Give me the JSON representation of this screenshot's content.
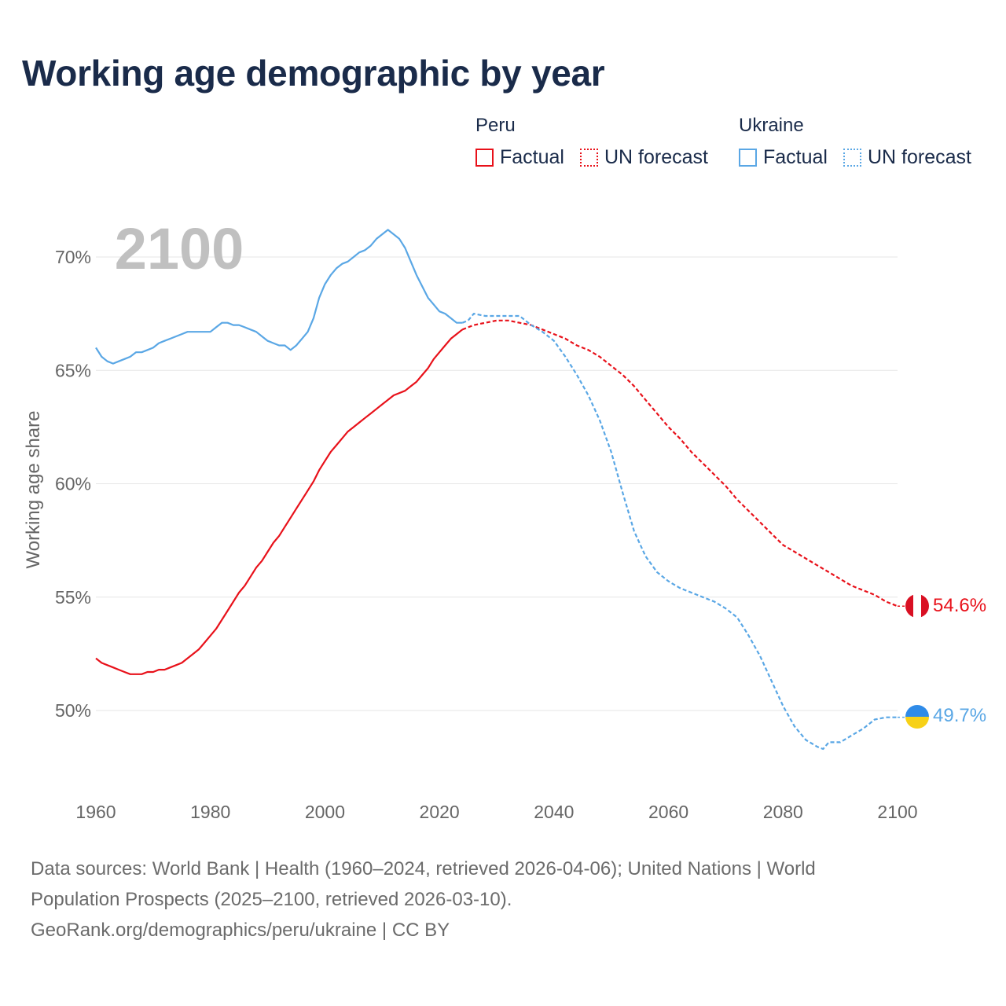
{
  "title": "Working age demographic by year",
  "legend": {
    "groups": [
      {
        "country": "Peru",
        "factual_label": "Factual",
        "forecast_label": "UN forecast",
        "color": "#e8111a"
      },
      {
        "country": "Ukraine",
        "factual_label": "Factual",
        "forecast_label": "UN forecast",
        "color": "#5aa7e5"
      }
    ]
  },
  "year_watermark": "2100",
  "end_labels": {
    "peru": "54.6%",
    "ukraine": "49.7%"
  },
  "footer": {
    "lines": [
      "Data sources: World Bank | Health (1960–2024, retrieved 2026-04-06); United Nations | World",
      "Population Prospects (2025–2100, retrieved 2026-03-10).",
      "GeoRank.org/demographics/peru/ukraine | CC BY"
    ]
  },
  "colors": {
    "peru": "#e8111a",
    "ukraine": "#5aa7e5",
    "text": "#1a2b4a",
    "grid": "#e6e6e6",
    "axis_text": "#666666",
    "watermark": "#c0c0c0"
  },
  "chart_data": {
    "type": "line",
    "title": "Working age demographic by year",
    "xlabel": "",
    "ylabel": "Working age share",
    "xlim": [
      1960,
      2100
    ],
    "ylim": [
      46.5,
      73
    ],
    "xticks": [
      1960,
      1980,
      2000,
      2020,
      2040,
      2060,
      2080,
      2100
    ],
    "xtick_labels": [
      "1960",
      "1980",
      "2000",
      "2020",
      "2040",
      "2060",
      "2080",
      "2100"
    ],
    "yticks": [
      50,
      55,
      60,
      65,
      70
    ],
    "ytick_labels": [
      "50%",
      "55%",
      "60%",
      "65%",
      "70%"
    ],
    "series": [
      {
        "name": "Peru",
        "segment": "Factual",
        "dash": "solid",
        "color": "#e8111a",
        "x": [
          1960,
          1961,
          1962,
          1963,
          1964,
          1965,
          1966,
          1967,
          1968,
          1969,
          1970,
          1971,
          1972,
          1973,
          1974,
          1975,
          1976,
          1977,
          1978,
          1979,
          1980,
          1981,
          1982,
          1983,
          1984,
          1985,
          1986,
          1987,
          1988,
          1989,
          1990,
          1991,
          1992,
          1993,
          1994,
          1995,
          1996,
          1997,
          1998,
          1999,
          2000,
          2001,
          2002,
          2003,
          2004,
          2005,
          2006,
          2007,
          2008,
          2009,
          2010,
          2011,
          2012,
          2013,
          2014,
          2015,
          2016,
          2017,
          2018,
          2019,
          2020,
          2021,
          2022,
          2023,
          2024
        ],
        "y": [
          52.3,
          52.1,
          52.0,
          51.9,
          51.8,
          51.7,
          51.6,
          51.6,
          51.6,
          51.7,
          51.7,
          51.8,
          51.8,
          51.9,
          52.0,
          52.1,
          52.3,
          52.5,
          52.7,
          53.0,
          53.3,
          53.6,
          54.0,
          54.4,
          54.8,
          55.2,
          55.5,
          55.9,
          56.3,
          56.6,
          57.0,
          57.4,
          57.7,
          58.1,
          58.5,
          58.9,
          59.3,
          59.7,
          60.1,
          60.6,
          61.0,
          61.4,
          61.7,
          62.0,
          62.3,
          62.5,
          62.7,
          62.9,
          63.1,
          63.3,
          63.5,
          63.7,
          63.9,
          64.0,
          64.1,
          64.3,
          64.5,
          64.8,
          65.1,
          65.5,
          65.8,
          66.1,
          66.4,
          66.6,
          66.8
        ]
      },
      {
        "name": "Peru",
        "segment": "UN forecast",
        "dash": "dotted",
        "color": "#e8111a",
        "x": [
          2024,
          2026,
          2028,
          2030,
          2032,
          2034,
          2036,
          2038,
          2040,
          2042,
          2044,
          2046,
          2048,
          2050,
          2052,
          2054,
          2056,
          2058,
          2060,
          2062,
          2064,
          2066,
          2068,
          2070,
          2072,
          2074,
          2076,
          2078,
          2080,
          2082,
          2084,
          2086,
          2088,
          2090,
          2092,
          2094,
          2096,
          2098,
          2100
        ],
        "y": [
          66.8,
          67.0,
          67.1,
          67.2,
          67.2,
          67.1,
          67.0,
          66.8,
          66.6,
          66.4,
          66.1,
          65.9,
          65.6,
          65.2,
          64.8,
          64.3,
          63.7,
          63.1,
          62.5,
          62.0,
          61.4,
          60.9,
          60.4,
          59.9,
          59.3,
          58.8,
          58.3,
          57.8,
          57.3,
          57.0,
          56.7,
          56.4,
          56.1,
          55.8,
          55.5,
          55.3,
          55.1,
          54.8,
          54.6
        ]
      },
      {
        "name": "Ukraine",
        "segment": "Factual",
        "dash": "solid",
        "color": "#5aa7e5",
        "x": [
          1960,
          1961,
          1962,
          1963,
          1964,
          1965,
          1966,
          1967,
          1968,
          1969,
          1970,
          1971,
          1972,
          1973,
          1974,
          1975,
          1976,
          1977,
          1978,
          1979,
          1980,
          1981,
          1982,
          1983,
          1984,
          1985,
          1986,
          1987,
          1988,
          1989,
          1990,
          1991,
          1992,
          1993,
          1994,
          1995,
          1996,
          1997,
          1998,
          1999,
          2000,
          2001,
          2002,
          2003,
          2004,
          2005,
          2006,
          2007,
          2008,
          2009,
          2010,
          2011,
          2012,
          2013,
          2014,
          2015,
          2016,
          2017,
          2018,
          2019,
          2020,
          2021,
          2022,
          2023,
          2024
        ],
        "y": [
          66.0,
          65.6,
          65.4,
          65.3,
          65.4,
          65.5,
          65.6,
          65.8,
          65.8,
          65.9,
          66.0,
          66.2,
          66.3,
          66.4,
          66.5,
          66.6,
          66.7,
          66.7,
          66.7,
          66.7,
          66.7,
          66.9,
          67.1,
          67.1,
          67.0,
          67.0,
          66.9,
          66.8,
          66.7,
          66.5,
          66.3,
          66.2,
          66.1,
          66.1,
          65.9,
          66.1,
          66.4,
          66.7,
          67.3,
          68.2,
          68.8,
          69.2,
          69.5,
          69.7,
          69.8,
          70.0,
          70.2,
          70.3,
          70.5,
          70.8,
          71.0,
          71.2,
          71.0,
          70.8,
          70.4,
          69.8,
          69.2,
          68.7,
          68.2,
          67.9,
          67.6,
          67.5,
          67.3,
          67.1,
          67.1
        ]
      },
      {
        "name": "Ukraine",
        "segment": "UN forecast",
        "dash": "dotted",
        "color": "#5aa7e5",
        "x": [
          2024,
          2025,
          2026,
          2028,
          2030,
          2032,
          2034,
          2036,
          2038,
          2040,
          2042,
          2044,
          2046,
          2048,
          2050,
          2052,
          2054,
          2056,
          2058,
          2060,
          2062,
          2064,
          2066,
          2068,
          2070,
          2072,
          2074,
          2076,
          2078,
          2080,
          2082,
          2084,
          2086,
          2087,
          2088,
          2090,
          2092,
          2094,
          2096,
          2098,
          2100
        ],
        "y": [
          67.1,
          67.2,
          67.5,
          67.4,
          67.4,
          67.4,
          67.4,
          67.0,
          66.7,
          66.3,
          65.6,
          64.8,
          63.9,
          62.8,
          61.4,
          59.6,
          57.9,
          56.8,
          56.1,
          55.7,
          55.4,
          55.2,
          55.0,
          54.8,
          54.5,
          54.1,
          53.3,
          52.4,
          51.3,
          50.2,
          49.3,
          48.7,
          48.4,
          48.3,
          48.6,
          48.6,
          48.9,
          49.2,
          49.6,
          49.7,
          49.7
        ]
      }
    ]
  }
}
